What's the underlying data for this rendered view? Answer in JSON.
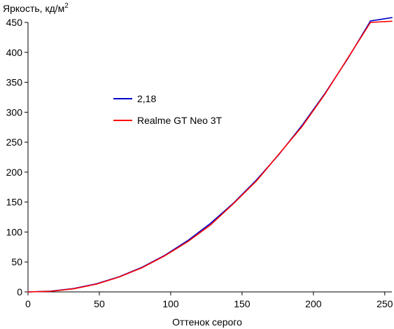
{
  "chart_data": {
    "type": "line",
    "title": "",
    "ylabel": "Яркость, кд/м",
    "ylabel_superscript": "2",
    "xlabel": "Оттенок серого",
    "xlim": [
      0,
      255
    ],
    "ylim": [
      0,
      450
    ],
    "xticks": [
      0,
      50,
      100,
      150,
      200,
      250
    ],
    "yticks": [
      0,
      50,
      100,
      150,
      200,
      250,
      300,
      350,
      400,
      450
    ],
    "grid": false,
    "legend_position": "center-left",
    "series": [
      {
        "name": "2,18",
        "color": "#0000cc",
        "x": [
          0,
          16,
          32,
          48,
          64,
          80,
          96,
          112,
          128,
          144,
          160,
          176,
          192,
          208,
          224,
          240,
          255
        ],
        "y": [
          0,
          1.2,
          5.6,
          13.5,
          25.4,
          41.2,
          61.3,
          85.8,
          114.7,
          148.3,
          186.7,
          229.9,
          278.0,
          331.1,
          389.2,
          452.4,
          458.0
        ]
      },
      {
        "name": "Realme GT Neo 3T",
        "color": "#ff0000",
        "x": [
          0,
          16,
          32,
          48,
          64,
          80,
          96,
          112,
          128,
          144,
          160,
          176,
          192,
          208,
          224,
          240,
          255
        ],
        "y": [
          0,
          1.0,
          5.2,
          13.0,
          25.0,
          40.5,
          60.5,
          84.0,
          112.0,
          147.5,
          185.0,
          230.5,
          276.0,
          330.0,
          390.0,
          450.0,
          452.0
        ]
      }
    ]
  }
}
